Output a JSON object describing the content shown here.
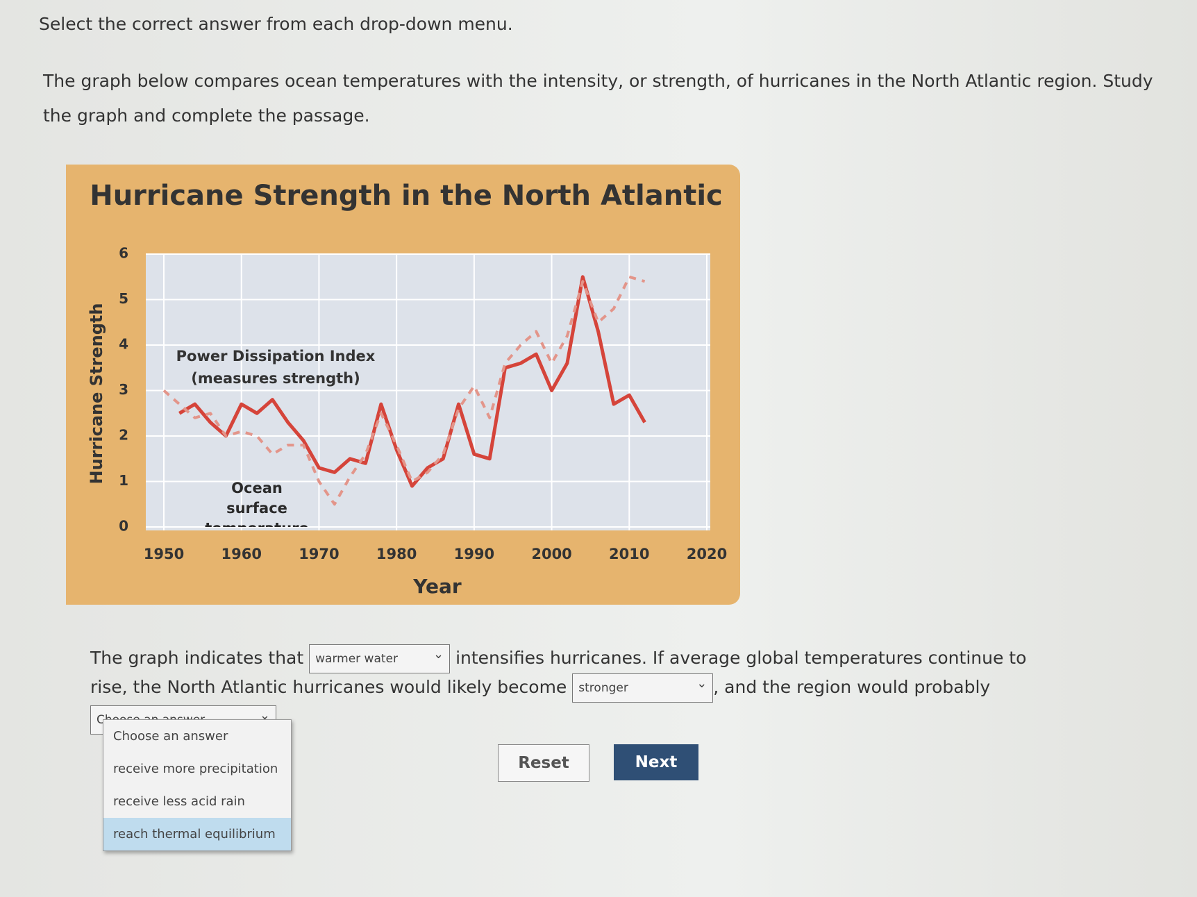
{
  "instruction": "Select the correct answer from each drop-down menu.",
  "prompt": "The graph below compares ocean temperatures with the intensity, or strength, of hurricanes in the North Atlantic region. Study the graph and complete the passage.",
  "chart_data": {
    "type": "line",
    "title": "Hurricane Strength in the North Atlantic",
    "xlabel": "Year",
    "ylabel": "Hurricane Strength",
    "x": [
      1950,
      1952,
      1954,
      1956,
      1958,
      1960,
      1962,
      1964,
      1966,
      1968,
      1970,
      1972,
      1974,
      1976,
      1978,
      1980,
      1982,
      1984,
      1986,
      1988,
      1990,
      1992,
      1994,
      1996,
      1998,
      2000,
      2002,
      2004,
      2006,
      2008,
      2010,
      2012
    ],
    "xlim": [
      1950,
      2020
    ],
    "xticks": [
      1950,
      1960,
      1970,
      1980,
      1990,
      2000,
      2010,
      2020
    ],
    "ylim": [
      0,
      6
    ],
    "yticks": [
      0,
      1,
      2,
      3,
      4,
      5,
      6
    ],
    "grid": true,
    "series": [
      {
        "name": "Power Dissipation Index",
        "note": "(measures strength)",
        "color": "#d5443a",
        "dashed": false,
        "values": [
          null,
          2.5,
          2.7,
          2.3,
          2.0,
          2.7,
          2.5,
          2.8,
          2.3,
          1.9,
          1.3,
          1.2,
          1.5,
          1.4,
          2.7,
          1.7,
          0.9,
          1.3,
          1.5,
          2.7,
          1.6,
          1.5,
          3.5,
          3.6,
          3.8,
          3.0,
          3.6,
          5.5,
          4.3,
          2.7,
          2.9,
          2.3
        ]
      },
      {
        "name": "Ocean surface temperature",
        "color": "#e3958a",
        "dashed": true,
        "values": [
          3.0,
          2.7,
          2.4,
          2.5,
          2.0,
          2.1,
          2.0,
          1.6,
          1.8,
          1.8,
          1.0,
          0.5,
          1.1,
          1.6,
          2.5,
          1.8,
          1.0,
          1.2,
          1.6,
          2.6,
          3.1,
          2.4,
          3.6,
          4.0,
          4.3,
          3.6,
          4.2,
          5.4,
          4.5,
          4.8,
          5.5,
          5.4
        ]
      }
    ]
  },
  "passage": {
    "part1": "The graph indicates that",
    "select1": "warmer water",
    "part2": "intensifies hurricanes. If average global temperatures continue to rise, the North Atlantic hurricanes would likely become",
    "select2": "stronger",
    "part3": ", and the region would probably",
    "select3": "Choose an answer",
    "part4": "."
  },
  "options": [
    "Choose an answer",
    "receive more precipitation",
    "receive less acid rain",
    "reach thermal equilibrium"
  ],
  "buttons": {
    "reset": "Reset",
    "next": "Next"
  }
}
